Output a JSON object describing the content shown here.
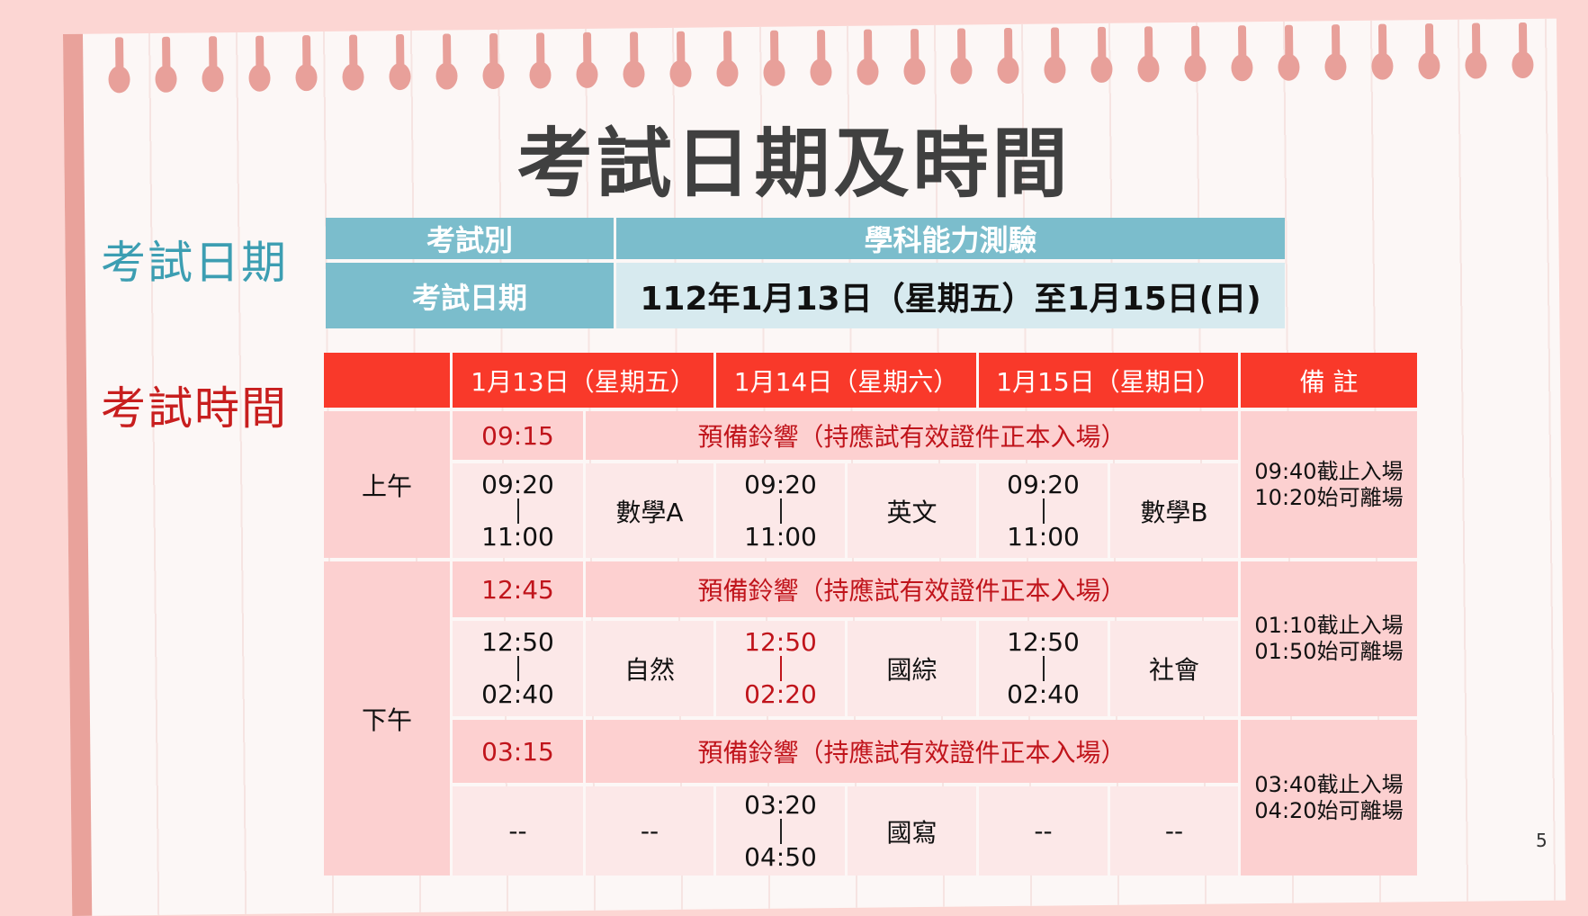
{
  "title": "考試日期及時間",
  "side_labels": {
    "date": "考試日期",
    "time": "考試時間"
  },
  "exam_info": {
    "type_label": "考試別",
    "type_value": "學科能力測驗",
    "date_label": "考試日期",
    "date_value": "112年1月13日（星期五）至1月15日(日)"
  },
  "schedule": {
    "headers": [
      "",
      "1月13日（星期五）",
      "1月14日（星期六）",
      "1月15日（星期日）",
      "備 註"
    ],
    "periods": {
      "am": "上午",
      "pm": "下午"
    },
    "prep_text": "預備鈴響（持應試有效證件正本入場）",
    "prep_times": [
      "09:15",
      "12:45",
      "03:15"
    ],
    "sessions": [
      {
        "exams": [
          {
            "start": "09:20",
            "end": "11:00",
            "subject": "數學A",
            "highlight": false
          },
          {
            "start": "09:20",
            "end": "11:00",
            "subject": "英文",
            "highlight": false
          },
          {
            "start": "09:20",
            "end": "11:00",
            "subject": "數學B",
            "highlight": false
          }
        ],
        "remarks": [
          "09:40截止入場",
          "10:20始可離場"
        ]
      },
      {
        "exams": [
          {
            "start": "12:50",
            "end": "02:40",
            "subject": "自然",
            "highlight": false
          },
          {
            "start": "12:50",
            "end": "02:20",
            "subject": "國綜",
            "highlight": true
          },
          {
            "start": "12:50",
            "end": "02:40",
            "subject": "社會",
            "highlight": false
          }
        ],
        "remarks": [
          "01:10截止入場",
          "01:50始可離場"
        ]
      },
      {
        "exams": [
          {
            "start": "--",
            "end": "",
            "subject": "--",
            "highlight": false
          },
          {
            "start": "03:20",
            "end": "04:50",
            "subject": "國寫",
            "highlight": false
          },
          {
            "start": "--",
            "end": "",
            "subject": "--",
            "highlight": false
          }
        ],
        "remarks": [
          "03:40截止入場",
          "04:20始可離場"
        ]
      }
    ]
  },
  "page_number": "5",
  "colors": {
    "header_red": "#f9392a",
    "teal": "#7bbdcc",
    "light_teal": "#d7eaef",
    "accent_red_text": "#c0141b",
    "pink_cell": "#fcd0d0"
  }
}
